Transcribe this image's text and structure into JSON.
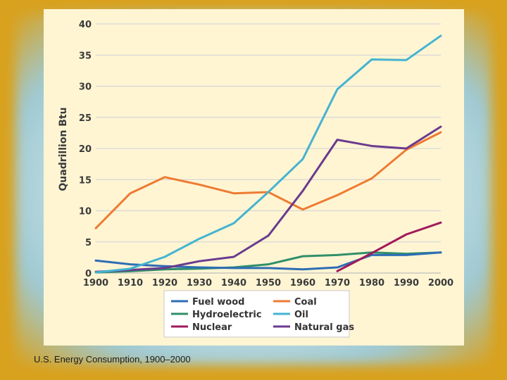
{
  "caption": "U.S. Energy Consumption, 1900–2000",
  "chart_data": {
    "type": "line",
    "title": "U.S. Energy Consumption, 1900–2000",
    "xlabel": "",
    "ylabel": "Quadrillion Btu",
    "x": [
      1900,
      1910,
      1920,
      1930,
      1940,
      1950,
      1960,
      1970,
      1980,
      1990,
      2000
    ],
    "xlim": [
      1900,
      2000
    ],
    "ylim": [
      0,
      40
    ],
    "yticks": [
      0,
      5,
      10,
      15,
      20,
      25,
      30,
      35,
      40
    ],
    "xticks": [
      1900,
      1910,
      1920,
      1930,
      1940,
      1950,
      1960,
      1970,
      1980,
      1990,
      2000
    ],
    "grid": true,
    "legend_position": "bottom",
    "series": [
      {
        "name": "Fuel wood",
        "color": "#2e6db4",
        "x": [
          1900,
          1910,
          1920,
          1930,
          1940,
          1950,
          1960,
          1970,
          1980,
          1990,
          2000
        ],
        "values": [
          2.0,
          1.4,
          1.1,
          0.9,
          0.8,
          0.8,
          0.6,
          0.9,
          2.9,
          2.9,
          3.3
        ]
      },
      {
        "name": "Coal",
        "color": "#ee7b32",
        "x": [
          1900,
          1910,
          1920,
          1930,
          1940,
          1950,
          1960,
          1970,
          1980,
          1990,
          2000
        ],
        "values": [
          7.2,
          12.8,
          15.4,
          14.2,
          12.8,
          13.0,
          10.2,
          12.5,
          15.2,
          19.8,
          22.6
        ]
      },
      {
        "name": "Hydroelectric",
        "color": "#2f8f6a",
        "x": [
          1900,
          1910,
          1920,
          1930,
          1940,
          1950,
          1960,
          1970,
          1980,
          1990,
          2000
        ],
        "values": [
          0.1,
          0.3,
          0.6,
          0.7,
          0.9,
          1.4,
          2.7,
          2.9,
          3.3,
          3.1,
          3.3
        ]
      },
      {
        "name": "Oil",
        "color": "#45b3d1",
        "x": [
          1900,
          1910,
          1920,
          1930,
          1940,
          1950,
          1960,
          1970,
          1980,
          1990,
          2000
        ],
        "values": [
          0.1,
          0.7,
          2.6,
          5.5,
          8.0,
          13.0,
          18.3,
          29.5,
          34.3,
          34.2,
          38.1
        ]
      },
      {
        "name": "Nuclear",
        "color": "#a2195a",
        "x": [
          1970,
          1980,
          1990,
          2000
        ],
        "values": [
          0.3,
          3.2,
          6.2,
          8.1
        ]
      },
      {
        "name": "Natural gas",
        "color": "#6a3a8f",
        "x": [
          1900,
          1910,
          1920,
          1930,
          1940,
          1950,
          1960,
          1970,
          1980,
          1990,
          2000
        ],
        "values": [
          0.2,
          0.5,
          0.8,
          1.9,
          2.6,
          6.0,
          13.2,
          21.4,
          20.4,
          20.0,
          23.5
        ]
      }
    ]
  }
}
